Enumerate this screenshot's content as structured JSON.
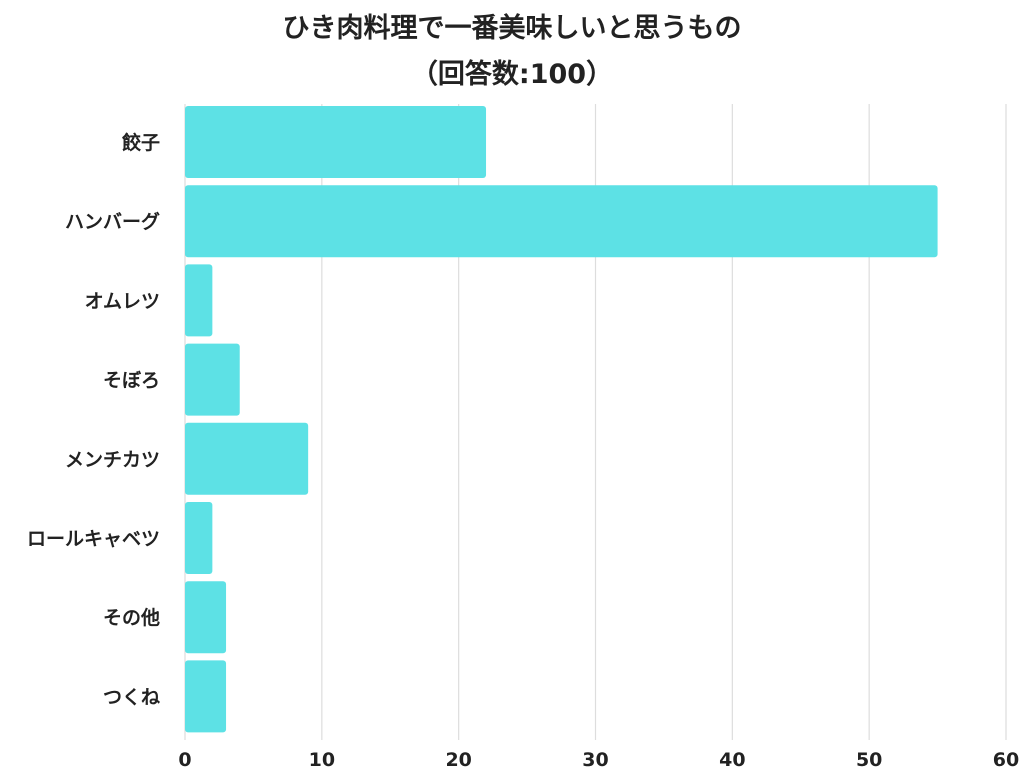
{
  "chart_data": {
    "type": "bar",
    "orientation": "horizontal",
    "title": "ひき肉料理で一番美味しいと思うもの",
    "subtitle": "（回答数:100）",
    "categories": [
      "餃子",
      "ハンバーグ",
      "オムレツ",
      "そぼろ",
      "メンチカツ",
      "ロールキャベツ",
      "その他",
      "つくね"
    ],
    "values": [
      22,
      55,
      2,
      4,
      9,
      2,
      3,
      3
    ],
    "xlim": [
      0,
      60
    ],
    "xticks": [
      0,
      10,
      20,
      30,
      40,
      50,
      60
    ],
    "grid": true,
    "legend": "none",
    "bar_color": "#5de1e5",
    "grid_color": "#dddddd"
  }
}
